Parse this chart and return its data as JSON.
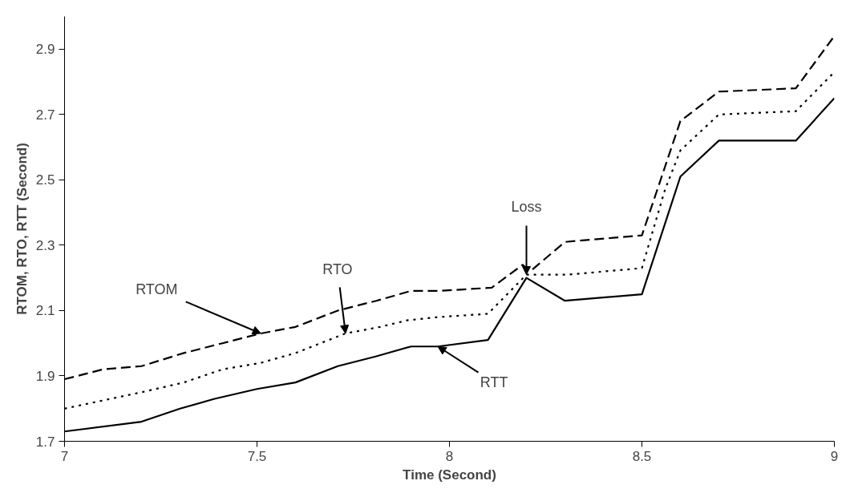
{
  "chart_data": {
    "type": "line",
    "xlabel": "Time (Second)",
    "ylabel": "RTOM, RTO, RTT (Second)",
    "xlim": [
      7,
      9
    ],
    "ylim": [
      1.7,
      3.0
    ],
    "xticks": [
      7,
      7.5,
      8,
      8.5,
      9
    ],
    "yticks": [
      1.7,
      1.9,
      2.1,
      2.3,
      2.5,
      2.7,
      2.9
    ],
    "grid": false,
    "marker": "none",
    "series": [
      {
        "color": "#000000",
        "line_style": "dashed",
        "x": [
          7.0,
          7.1,
          7.2,
          7.31,
          7.41,
          7.51,
          7.6,
          7.71,
          7.81,
          7.9,
          7.97,
          8.11,
          8.19,
          8.21,
          8.3,
          8.5,
          8.6,
          8.7,
          8.9,
          9.0
        ],
        "values": [
          1.89,
          1.92,
          1.93,
          1.97,
          2.0,
          2.03,
          2.05,
          2.1,
          2.13,
          2.16,
          2.16,
          2.17,
          2.24,
          2.22,
          2.31,
          2.33,
          2.68,
          2.77,
          2.78,
          2.94
        ]
      },
      {
        "color": "#000000",
        "line_style": "dotted",
        "x": [
          7.0,
          7.2,
          7.31,
          7.41,
          7.51,
          7.6,
          7.73,
          7.82,
          7.89,
          7.97,
          8.1,
          8.2,
          8.31,
          8.5,
          8.56,
          8.6,
          8.7,
          8.9,
          9.0
        ],
        "values": [
          1.8,
          1.85,
          1.88,
          1.92,
          1.94,
          1.97,
          2.03,
          2.05,
          2.07,
          2.08,
          2.09,
          2.21,
          2.21,
          2.23,
          2.47,
          2.59,
          2.7,
          2.71,
          2.83
        ]
      },
      {
        "color": "#000000",
        "line_style": "solid",
        "x": [
          7.0,
          7.2,
          7.3,
          7.39,
          7.5,
          7.6,
          7.71,
          7.81,
          7.9,
          7.97,
          8.1,
          8.2,
          8.3,
          8.5,
          8.6,
          8.7,
          8.9,
          9.0
        ],
        "values": [
          1.73,
          1.76,
          1.8,
          1.83,
          1.86,
          1.88,
          1.93,
          1.96,
          1.99,
          1.99,
          2.01,
          2.2,
          2.13,
          2.15,
          2.51,
          2.62,
          2.62,
          2.75
        ]
      }
    ],
    "annotations": [
      {
        "text": "RTOM",
        "x": 7.51,
        "y": 2.03
      },
      {
        "text": "RTO",
        "x": 7.73,
        "y": 2.03
      },
      {
        "text": "RTT",
        "x": 7.97,
        "y": 1.99
      },
      {
        "text": "Loss",
        "x": 8.2,
        "y": 2.21
      }
    ]
  }
}
